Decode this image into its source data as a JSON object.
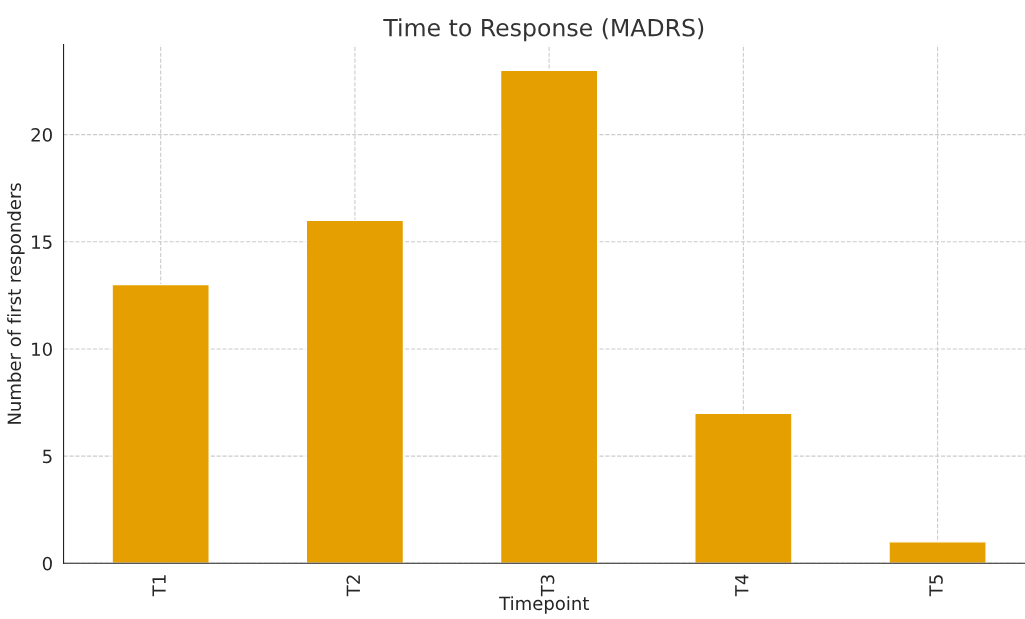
{
  "chart_data": {
    "type": "bar",
    "title": "Time to Response (MADRS)",
    "xlabel": "Timepoint",
    "ylabel": "Number of first responders",
    "categories": [
      "T1",
      "T2",
      "T3",
      "T4",
      "T5"
    ],
    "values": [
      13,
      16,
      23,
      7,
      1
    ],
    "color": "#e69f00",
    "ylim": [
      0,
      24.2
    ],
    "yticks": [
      0,
      5,
      10,
      15,
      20
    ],
    "grid": true,
    "line_style": "dashed"
  }
}
